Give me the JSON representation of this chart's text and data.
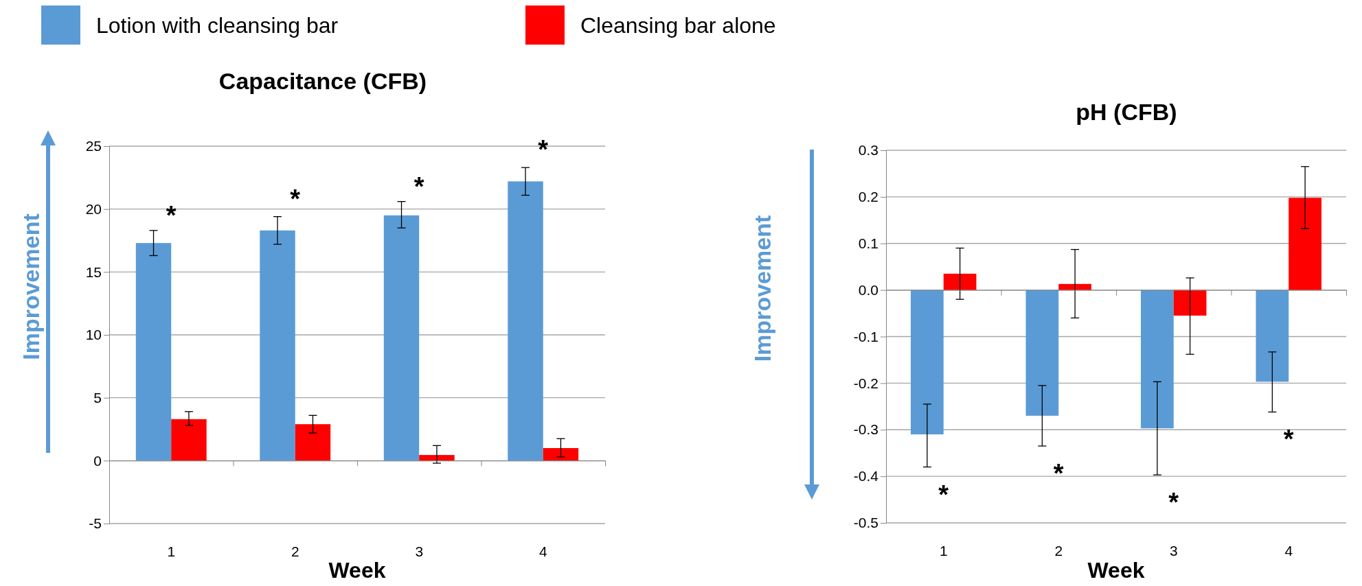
{
  "chart_data": [
    {
      "type": "bar",
      "title": "Capacitance (CFB)",
      "xlabel": "Week",
      "ylabel": "Improvement",
      "categories": [
        "1",
        "2",
        "3",
        "4"
      ],
      "series": [
        {
          "name": "Lotion with cleansing bar",
          "color": "#5b9bd5",
          "values": [
            17.3,
            18.3,
            19.5,
            22.2
          ],
          "errors": [
            [
              16.3,
              18.3
            ],
            [
              17.2,
              19.4
            ],
            [
              18.5,
              20.6
            ],
            [
              21.1,
              23.3
            ]
          ]
        },
        {
          "name": "Cleansing bar alone",
          "color": "#ff0000",
          "values": [
            3.3,
            2.9,
            0.45,
            1.0
          ],
          "errors": [
            [
              2.8,
              3.9
            ],
            [
              2.2,
              3.6
            ],
            [
              -0.2,
              1.2
            ],
            [
              0.3,
              1.75
            ]
          ]
        }
      ],
      "ylim": [
        -5,
        25
      ],
      "yticks": [
        -5,
        0,
        5,
        10,
        15,
        20,
        25
      ],
      "grid": "y",
      "legend": "top",
      "annotations": [
        "*",
        "*",
        "*",
        "*"
      ]
    },
    {
      "type": "bar",
      "title": "pH (CFB)",
      "xlabel": "Week",
      "ylabel": "Improvement",
      "categories": [
        "1",
        "2",
        "3",
        "4"
      ],
      "series": [
        {
          "color": "#5b9bd5",
          "values": [
            -0.31,
            -0.27,
            -0.297,
            -0.197
          ],
          "errors": [
            [
              -0.38,
              -0.245
            ],
            [
              -0.335,
              -0.205
            ],
            [
              -0.397,
              -0.197
            ],
            [
              -0.262,
              -0.133
            ]
          ]
        },
        {
          "color": "#ff0000",
          "values": [
            0.035,
            0.013,
            -0.055,
            0.198
          ],
          "errors": [
            [
              -0.02,
              0.09
            ],
            [
              -0.06,
              0.087
            ],
            [
              -0.138,
              0.026
            ],
            [
              0.132,
              0.265
            ]
          ]
        }
      ],
      "ylim": [
        -0.5,
        0.3
      ],
      "yticks": [
        {
          "value": -0.5,
          "label": "-0.5"
        },
        {
          "value": -0.4,
          "label": "-0.4"
        },
        {
          "value": -0.3,
          "label": "-0.3"
        },
        {
          "value": -0.2,
          "label": "-0.2"
        },
        {
          "value": -0.1,
          "label": "-0.1"
        },
        {
          "value": 0,
          "label": "0.0"
        },
        0.1,
        0.2,
        0.3
      ],
      "grid": "y",
      "annotations": [
        "*",
        "*",
        "*",
        "*"
      ]
    }
  ]
}
